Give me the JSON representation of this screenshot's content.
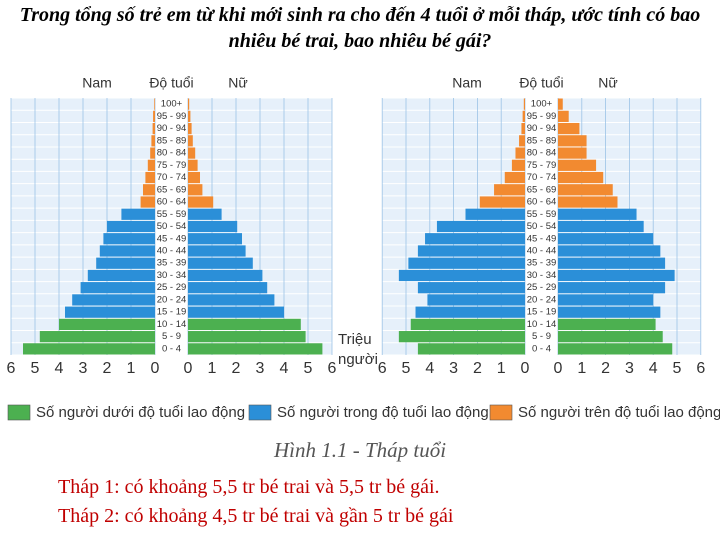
{
  "title": "Trong tổng số trẻ em từ khi mới sinh ra cho đến 4 tuổi ở mỗi tháp, ước tính có bao nhiêu bé trai, bao nhiêu bé gái?",
  "chart_data": [
    {
      "type": "pyramid",
      "male_label": "Nam",
      "age_label": "Độ tuổi",
      "female_label": "Nữ",
      "xlabel": "Triệu người",
      "xlim": [
        0,
        6
      ],
      "xticks": [
        0,
        1,
        2,
        3,
        4,
        5,
        6
      ],
      "categories": [
        "0 - 4",
        "5 - 9",
        "10 - 14",
        "15 - 19",
        "20 - 24",
        "25 - 29",
        "30 - 34",
        "35 - 39",
        "40 - 44",
        "45 - 49",
        "50 - 54",
        "55 - 59",
        "60 - 64",
        "65 - 69",
        "70 - 74",
        "75 - 79",
        "80 - 84",
        "85 - 89",
        "90 - 94",
        "95 - 99",
        "100+"
      ],
      "series": [
        {
          "name": "Số người dưới độ tuổi lao động",
          "color": "#4cb050",
          "male": [
            5.5,
            4.8,
            4.0,
            null,
            null,
            null,
            null,
            null,
            null,
            null,
            null,
            null,
            null,
            null,
            null,
            null,
            null,
            null,
            null,
            null,
            null
          ],
          "female": [
            5.6,
            4.9,
            4.7,
            null,
            null,
            null,
            null,
            null,
            null,
            null,
            null,
            null,
            null,
            null,
            null,
            null,
            null,
            null,
            null,
            null,
            null
          ]
        },
        {
          "name": "Số người trong độ tuổi lao động",
          "color": "#2b8fd8",
          "male": [
            null,
            null,
            null,
            3.75,
            3.45,
            3.1,
            2.8,
            2.45,
            2.3,
            2.15,
            2.0,
            1.4,
            null,
            null,
            null,
            null,
            null,
            null,
            null,
            null,
            null
          ],
          "female": [
            null,
            null,
            null,
            4.0,
            3.6,
            3.3,
            3.1,
            2.7,
            2.4,
            2.25,
            2.05,
            1.4,
            null,
            null,
            null,
            null,
            null,
            null,
            null,
            null,
            null
          ]
        },
        {
          "name": "Số người trên độ tuổi lao động",
          "color": "#f28a30",
          "male": [
            null,
            null,
            null,
            null,
            null,
            null,
            null,
            null,
            null,
            null,
            null,
            null,
            0.6,
            0.5,
            0.4,
            0.3,
            0.2,
            0.15,
            0.1,
            0.08,
            0.03
          ],
          "female": [
            null,
            null,
            null,
            null,
            null,
            null,
            null,
            null,
            null,
            null,
            null,
            null,
            1.05,
            0.6,
            0.5,
            0.4,
            0.3,
            0.2,
            0.15,
            0.1,
            0.05
          ]
        }
      ]
    },
    {
      "type": "pyramid",
      "male_label": "Nam",
      "age_label": "Độ tuổi",
      "female_label": "Nữ",
      "xlim": [
        0,
        6
      ],
      "xticks": [
        0,
        1,
        2,
        3,
        4,
        5,
        6
      ],
      "categories": [
        "0 - 4",
        "5 - 9",
        "10 - 14",
        "15 - 19",
        "20 - 24",
        "25 - 29",
        "30 - 34",
        "35 - 39",
        "40 - 44",
        "45 - 49",
        "50 - 54",
        "55 - 59",
        "60 - 64",
        "65 - 69",
        "70 - 74",
        "75 - 79",
        "80 - 84",
        "85 - 89",
        "90 - 94",
        "95 - 99",
        "100+"
      ],
      "series": [
        {
          "color": "#4cb050",
          "male": [
            4.5,
            5.3,
            4.8,
            null,
            null,
            null,
            null,
            null,
            null,
            null,
            null,
            null,
            null,
            null,
            null,
            null,
            null,
            null,
            null,
            null,
            null
          ],
          "female": [
            4.8,
            4.4,
            4.1,
            null,
            null,
            null,
            null,
            null,
            null,
            null,
            null,
            null,
            null,
            null,
            null,
            null,
            null,
            null,
            null,
            null,
            null
          ]
        },
        {
          "color": "#2b8fd8",
          "male": [
            null,
            null,
            null,
            4.6,
            4.1,
            4.5,
            5.3,
            4.9,
            4.5,
            4.2,
            3.7,
            2.5,
            null,
            null,
            null,
            null,
            null,
            null,
            null,
            null,
            null
          ],
          "female": [
            null,
            null,
            null,
            4.3,
            4.0,
            4.5,
            4.9,
            4.5,
            4.3,
            4.0,
            3.6,
            3.3,
            null,
            null,
            null,
            null,
            null,
            null,
            null,
            null,
            null
          ]
        },
        {
          "color": "#f28a30",
          "male": [
            null,
            null,
            null,
            null,
            null,
            null,
            null,
            null,
            null,
            null,
            null,
            null,
            1.9,
            1.3,
            0.85,
            0.55,
            0.4,
            0.25,
            0.15,
            0.1,
            0.05
          ],
          "female": [
            null,
            null,
            null,
            null,
            null,
            null,
            null,
            null,
            null,
            null,
            null,
            null,
            2.5,
            2.3,
            1.9,
            1.6,
            1.2,
            1.2,
            0.9,
            0.45,
            0.2
          ]
        }
      ]
    }
  ],
  "caption": "Hình 1.1 - Tháp tuổi",
  "answers": [
    "Tháp 1: có khoảng 5,5 tr bé trai và 5,5 tr bé gái.",
    "Tháp 2: có khoảng 4,5 tr bé trai và gần 5 tr bé gái"
  ]
}
